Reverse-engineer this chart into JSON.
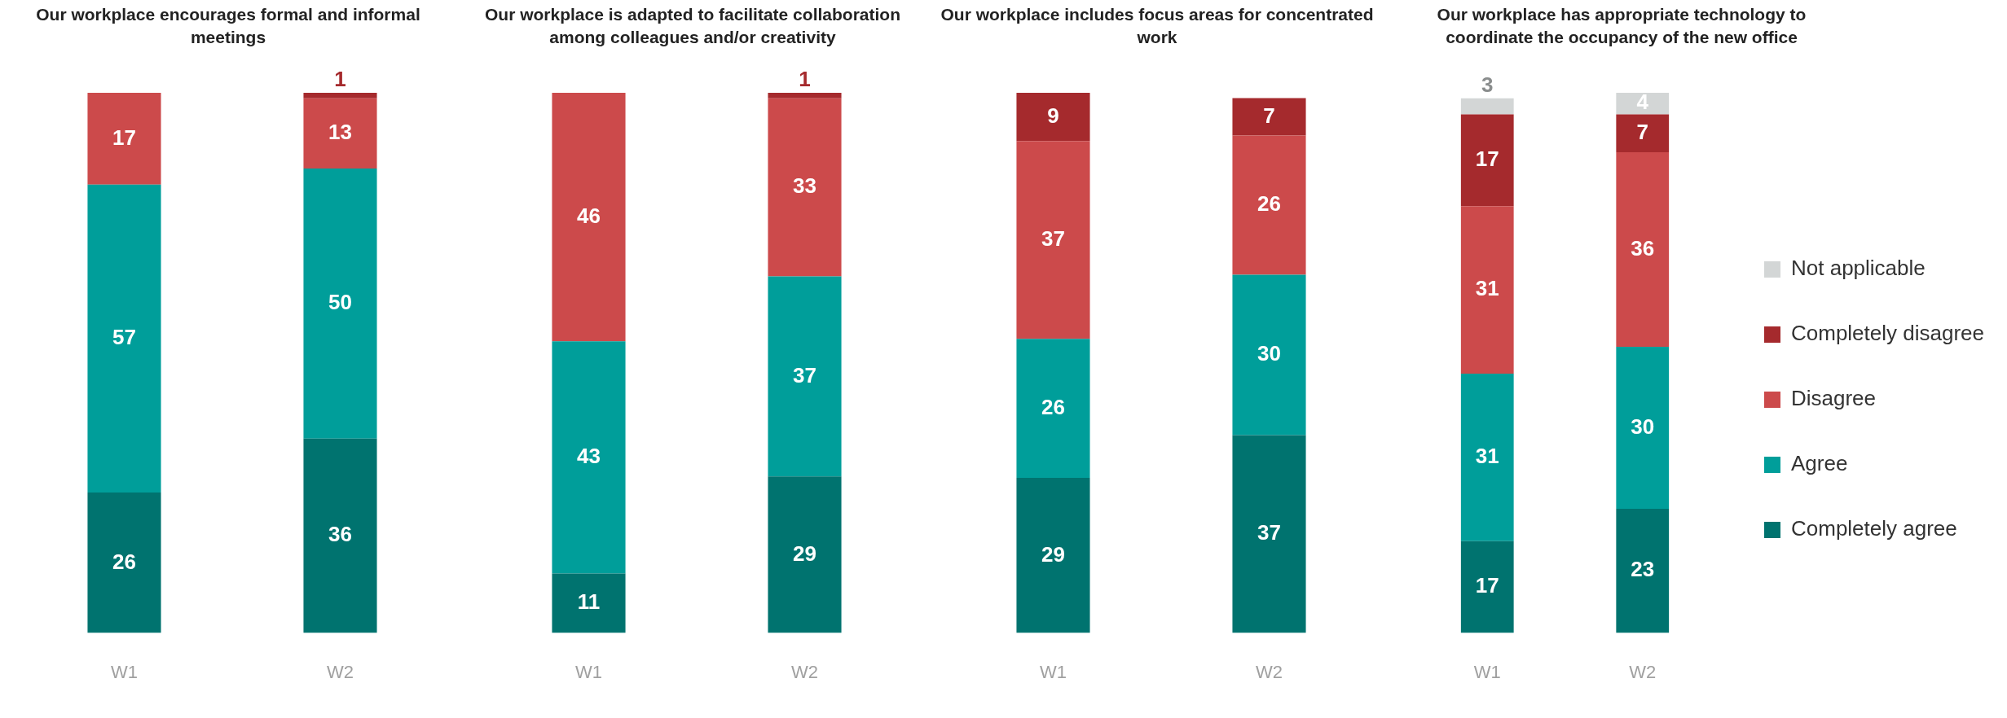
{
  "chart_data": [
    {
      "type": "bar",
      "title": "Our workplace encourages formal and informal meetings",
      "categories": [
        "W1",
        "W2"
      ],
      "stacked": true,
      "data_labels": true,
      "legend": false,
      "series": [
        {
          "color": "#00736f",
          "values": [
            26,
            36
          ]
        },
        {
          "color": "#009e9a",
          "values": [
            57,
            50
          ]
        },
        {
          "color": "#cc4a4b",
          "values": [
            17,
            13
          ]
        },
        {
          "color": "#a52a2d",
          "values": [
            null,
            1
          ]
        }
      ]
    },
    {
      "type": "bar",
      "title": "Our workplace is adapted to facilitate collaboration among colleagues and/or creativity",
      "categories": [
        "W1",
        "W2"
      ],
      "stacked": true,
      "data_labels": true,
      "legend": false,
      "series": [
        {
          "color": "#00736f",
          "values": [
            11,
            29
          ]
        },
        {
          "color": "#009e9a",
          "values": [
            43,
            37
          ]
        },
        {
          "color": "#cc4a4b",
          "values": [
            46,
            33
          ]
        },
        {
          "color": "#a52a2d",
          "values": [
            null,
            1
          ]
        }
      ]
    },
    {
      "type": "bar",
      "title": "Our workplace includes focus areas for concentrated work",
      "categories": [
        "W1",
        "W2"
      ],
      "stacked": true,
      "data_labels": true,
      "legend": false,
      "series": [
        {
          "color": "#00736f",
          "values": [
            29,
            37
          ]
        },
        {
          "color": "#009e9a",
          "values": [
            26,
            30
          ]
        },
        {
          "color": "#cc4a4b",
          "values": [
            37,
            26
          ]
        },
        {
          "color": "#a52a2d",
          "values": [
            9,
            7
          ]
        }
      ]
    },
    {
      "type": "bar",
      "title": "Our workplace has appropriate technology to coordinate the occupancy of the new office",
      "categories": [
        "W1",
        "W2"
      ],
      "stacked": true,
      "data_labels": true,
      "legend": "right",
      "series": [
        {
          "name": "Completely agree",
          "color": "#00736f",
          "values": [
            17,
            23
          ]
        },
        {
          "name": "Agree",
          "color": "#009e9a",
          "values": [
            31,
            30
          ]
        },
        {
          "name": "Disagree",
          "color": "#cc4a4b",
          "values": [
            31,
            36
          ]
        },
        {
          "name": "Completely disagree",
          "color": "#a52a2d",
          "values": [
            17,
            7
          ]
        },
        {
          "name": "Not applicable",
          "color": "#d3d6d6",
          "values": [
            3,
            4
          ]
        }
      ]
    }
  ]
}
